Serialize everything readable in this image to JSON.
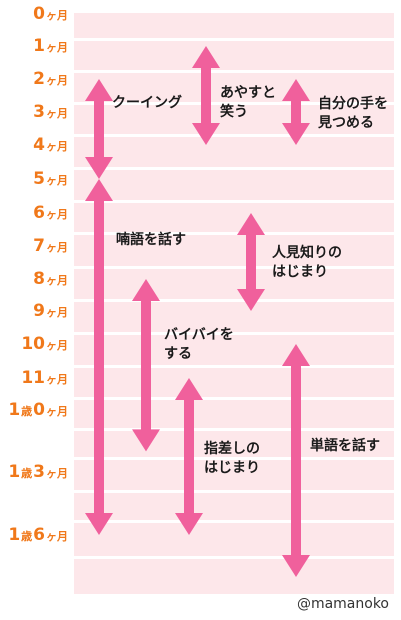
{
  "age_labels": [
    {
      "num": "0",
      "unit": "ヶ月"
    },
    {
      "num": "1",
      "unit": "ヶ月"
    },
    {
      "num": "2",
      "unit": "ヶ月"
    },
    {
      "num": "3",
      "unit": "ヶ月"
    },
    {
      "num": "4",
      "unit": "ヶ月"
    },
    {
      "num": "5",
      "unit": "ヶ月"
    },
    {
      "num": "6",
      "unit": "ヶ月"
    },
    {
      "num": "7",
      "unit": "ヶ月"
    },
    {
      "num": "8",
      "unit": "ヶ月"
    },
    {
      "num": "9",
      "unit": "ヶ月"
    },
    {
      "num": "10",
      "unit": "ヶ月"
    },
    {
      "num": "11",
      "unit": "ヶ月"
    },
    {
      "num": "1",
      "unit": "歳",
      "num2": "0",
      "unit2": "ヶ月"
    },
    {
      "num": "1",
      "unit": "歳",
      "num2": "3",
      "unit2": "ヶ月"
    },
    {
      "num": "1",
      "unit": "歳",
      "num2": "6",
      "unit2": "ヶ月"
    }
  ],
  "milestones": [
    {
      "label_lines": [
        "クーイング"
      ],
      "range_months": [
        2,
        5
      ]
    },
    {
      "label_lines": [
        "あやすと",
        "笑う"
      ],
      "range_months": [
        1,
        4
      ]
    },
    {
      "label_lines": [
        "自分の手を",
        "見つめる"
      ],
      "range_months": [
        2,
        4
      ]
    },
    {
      "label_lines": [
        "喃語を話す"
      ],
      "range_months": [
        5,
        18
      ]
    },
    {
      "label_lines": [
        "人見知りの",
        "はじまり"
      ],
      "range_months": [
        6,
        9
      ]
    },
    {
      "label_lines": [
        "バイバイを",
        "する"
      ],
      "range_months": [
        8,
        14
      ]
    },
    {
      "label_lines": [
        "指差しの",
        "はじまり"
      ],
      "range_months": [
        11,
        18
      ]
    },
    {
      "label_lines": [
        "単語を話す"
      ],
      "range_months": [
        10,
        20
      ]
    }
  ],
  "colors": {
    "age_label": "#f0781a",
    "arrow": "#f0609c",
    "band": "#fde7ea"
  },
  "credit": "@mamanoko"
}
